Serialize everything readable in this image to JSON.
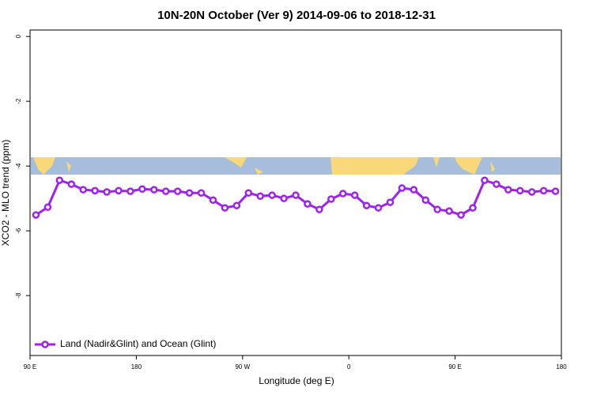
{
  "chart_data": {
    "type": "line",
    "title": "10N-20N October (Ver 9)   2014-09-06 to 2018-12-31",
    "x_label": "Longitude (deg E)",
    "y_label": "XCO2 - MLO trend (ppm)",
    "xlim": [
      90,
      540
    ],
    "ylim": [
      -9.85,
      0.2
    ],
    "xticks": [
      {
        "value": 90,
        "label": "90 E"
      },
      180,
      {
        "value": 270,
        "label": "90 W"
      },
      {
        "value": 360,
        "label": "0"
      },
      {
        "value": 450,
        "label": "90 E"
      },
      {
        "value": 540,
        "label": "180"
      }
    ],
    "yticks": [
      0,
      -2,
      -4,
      -6,
      -8
    ],
    "legend": "bottom-left",
    "series": [
      {
        "name": "Land (Nadir&Glint) and Ocean (Glint)",
        "color": "#a020f0",
        "x": [
          95,
          105,
          115,
          125,
          135,
          145,
          155,
          165,
          175,
          185,
          195,
          205,
          215,
          225,
          235,
          245,
          255,
          265,
          275,
          285,
          295,
          305,
          315,
          325,
          335,
          345,
          355,
          365,
          375,
          385,
          395,
          405,
          415,
          425,
          435,
          445,
          455,
          465,
          475,
          485,
          495,
          505,
          515,
          525,
          535
        ],
        "values": [
          -5.51,
          -5.27,
          -4.44,
          -4.56,
          -4.73,
          -4.76,
          -4.8,
          -4.76,
          -4.78,
          -4.71,
          -4.73,
          -4.78,
          -4.78,
          -4.83,
          -4.83,
          -5.05,
          -5.29,
          -5.22,
          -4.83,
          -4.93,
          -4.9,
          -5.0,
          -4.9,
          -5.17,
          -5.34,
          -5.02,
          -4.85,
          -4.9,
          -5.22,
          -5.29,
          -5.12,
          -4.68,
          -4.73,
          -5.05,
          -5.34,
          -5.39,
          -5.51,
          -5.29,
          -4.44,
          -4.56,
          -4.73,
          -4.76,
          -4.8,
          -4.76,
          -4.78
        ]
      }
    ]
  }
}
